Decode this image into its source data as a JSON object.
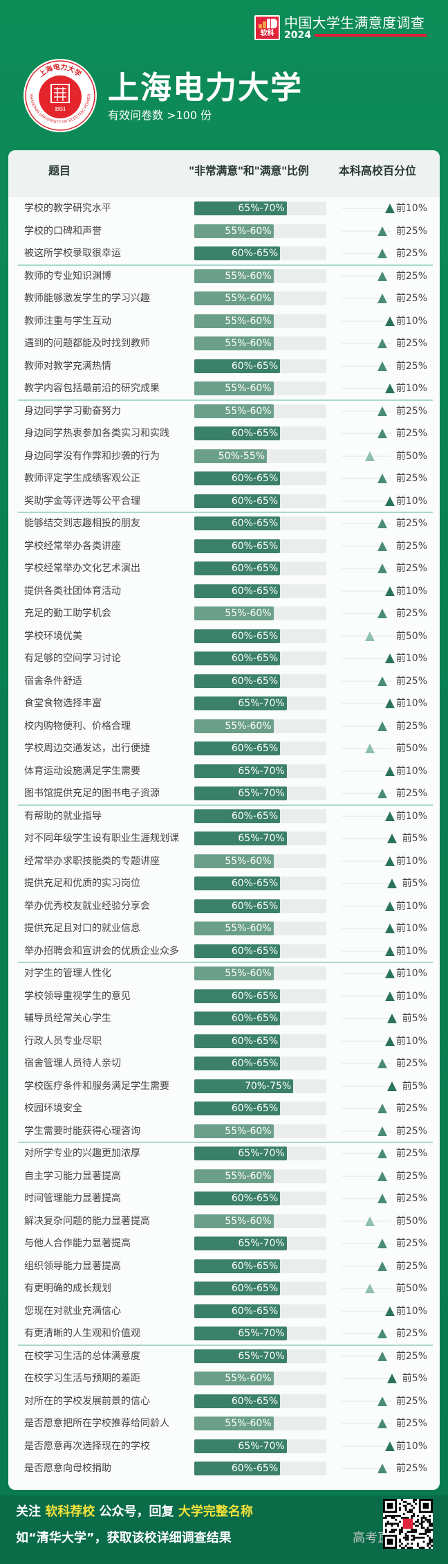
{
  "header": {
    "badge_text": "软科",
    "survey_title": "中国大学生满意度调查",
    "survey_year": "2024",
    "university_name": "上海电力大学",
    "sample_note": "有效问卷数 >100 份",
    "logo_text": {
      "top": "上海电力大学",
      "ring": "SHANGHAI UNIVERSITY OF ELECTRIC POWER",
      "year": "1951"
    }
  },
  "colors": {
    "bg_green": "#0a7f52",
    "bar_dark": "#3b8068",
    "bar_light": "#6b9f89",
    "accent_red": "#d8213a",
    "highlight_yellow": "#f3e23a"
  },
  "table": {
    "col_item": "题目",
    "col_ratio": "\"非常满意\"和\"满意\"比例",
    "col_percentile": "本科高校百分位"
  },
  "chart_data": {
    "type": "bar",
    "value_axis": [
      0,
      100
    ],
    "groups": [
      [
        [
          "学校的教学研究水平",
          "65%-70%",
          "前10%"
        ],
        [
          "学校的口碑和声誉",
          "55%-60%",
          "前25%"
        ],
        [
          "被这所学校录取很幸运",
          "60%-65%",
          "前25%"
        ]
      ],
      [
        [
          "教师的专业知识渊博",
          "55%-60%",
          "前25%"
        ],
        [
          "教师能够激发学生的学习兴趣",
          "55%-60%",
          "前25%"
        ],
        [
          "教师注重与学生互动",
          "55%-60%",
          "前10%"
        ],
        [
          "遇到的问题都能及时找到教师",
          "55%-60%",
          "前25%"
        ],
        [
          "教师对教学充满热情",
          "60%-65%",
          "前25%"
        ],
        [
          "教学内容包括最前沿的研究成果",
          "55%-60%",
          "前10%"
        ]
      ],
      [
        [
          "身边同学学习勤奋努力",
          "55%-60%",
          "前25%"
        ],
        [
          "身边同学热衷参加各类实习和实践",
          "60%-65%",
          "前25%"
        ],
        [
          "身边同学没有作弊和抄袭的行为",
          "50%-55%",
          "前50%"
        ],
        [
          "教师评定学生成绩客观公正",
          "60%-65%",
          "前25%"
        ],
        [
          "奖助学金等评选等公平合理",
          "60%-65%",
          "前10%"
        ]
      ],
      [
        [
          "能够结交到志趣相投的朋友",
          "60%-65%",
          "前25%"
        ],
        [
          "学校经常举办各类讲座",
          "60%-65%",
          "前25%"
        ],
        [
          "学校经常举办文化艺术演出",
          "60%-65%",
          "前25%"
        ],
        [
          "提供各类社团体育活动",
          "60%-65%",
          "前10%"
        ],
        [
          "充足的勤工助学机会",
          "55%-60%",
          "前25%"
        ],
        [
          "学校环境优美",
          "60%-65%",
          "前50%"
        ],
        [
          "有足够的空间学习讨论",
          "60%-65%",
          "前10%"
        ],
        [
          "宿舍条件舒适",
          "60%-65%",
          "前25%"
        ],
        [
          "食堂食物选择丰富",
          "65%-70%",
          "前10%"
        ],
        [
          "校内购物便利、价格合理",
          "55%-60%",
          "前25%"
        ],
        [
          "学校周边交通发达，出行便捷",
          "60%-65%",
          "前50%"
        ],
        [
          "体育运动设施满足学生需要",
          "65%-70%",
          "前10%"
        ],
        [
          "图书馆提供充足的图书电子资源",
          "65%-70%",
          "前25%"
        ]
      ],
      [
        [
          "有帮助的就业指导",
          "60%-65%",
          "前10%"
        ],
        [
          "对不同年级学生设有职业生涯规划课",
          "65%-70%",
          "前5%"
        ],
        [
          "经常举办求职技能类的专题讲座",
          "55%-60%",
          "前10%"
        ],
        [
          "提供充足和优质的实习岗位",
          "60%-65%",
          "前5%"
        ],
        [
          "举办优秀校友就业经验分享会",
          "60%-65%",
          "前10%"
        ],
        [
          "提供充足且对口的就业信息",
          "55%-60%",
          "前10%"
        ],
        [
          "举办招聘会和宣讲会的优质企业众多",
          "60%-65%",
          "前10%"
        ]
      ],
      [
        [
          "对学生的管理人性化",
          "55%-60%",
          "前10%"
        ],
        [
          "学校领导重视学生的意见",
          "60%-65%",
          "前10%"
        ],
        [
          "辅导员经常关心学生",
          "60%-65%",
          "前5%"
        ],
        [
          "行政人员专业尽职",
          "60%-65%",
          "前10%"
        ],
        [
          "宿舍管理人员待人亲切",
          "60%-65%",
          "前25%"
        ],
        [
          "学校医疗条件和服务满足学生需要",
          "70%-75%",
          "前5%"
        ],
        [
          "校园环境安全",
          "60%-65%",
          "前25%"
        ],
        [
          "学生需要时能获得心理咨询",
          "55%-60%",
          "前25%"
        ]
      ],
      [
        [
          "对所学专业的兴趣更加浓厚",
          "65%-70%",
          "前25%"
        ],
        [
          "自主学习能力显著提高",
          "55%-60%",
          "前25%"
        ],
        [
          "时间管理能力显著提高",
          "60%-65%",
          "前25%"
        ],
        [
          "解决复杂问题的能力显著提高",
          "55%-60%",
          "前50%"
        ],
        [
          "与他人合作能力显著提高",
          "65%-70%",
          "前25%"
        ],
        [
          "组织领导能力显著提高",
          "60%-65%",
          "前25%"
        ],
        [
          "有更明确的成长规划",
          "60%-65%",
          "前50%"
        ],
        [
          "您现在对就业充满信心",
          "60%-65%",
          "前10%"
        ],
        [
          "有更清晰的人生观和价值观",
          "65%-70%",
          "前25%"
        ]
      ],
      [
        [
          "在校学习生活的总体满意度",
          "65%-70%",
          "前25%"
        ],
        [
          "在校学习生活与预期的差距",
          "55%-60%",
          "前5%"
        ],
        [
          "对所在的学校发展前景的信心",
          "60%-65%",
          "前25%"
        ],
        [
          "是否愿意把所在学校推荐给同龄人",
          "55%-60%",
          "前25%"
        ],
        [
          "是否愿意再次选择现在的学校",
          "65%-70%",
          "前10%"
        ],
        [
          "是否愿意向母校捐助",
          "60%-65%",
          "前25%"
        ]
      ]
    ]
  },
  "footer": {
    "line1_a": "关注 ",
    "line1_b": "软科荐校",
    "line1_c": " 公众号，回复 ",
    "line1_d": "大学完整名称",
    "line2": "如“清华大学”，获取该校详细调查结果",
    "watermark": "高考直通车"
  }
}
